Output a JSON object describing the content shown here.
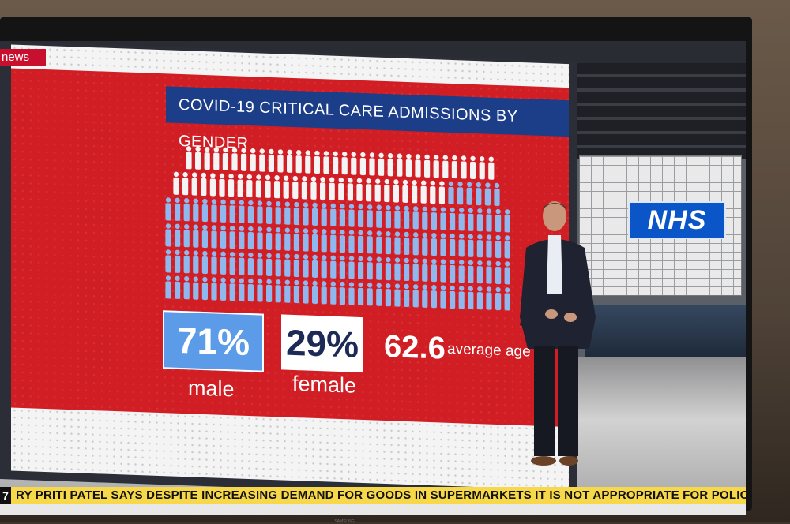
{
  "broadcast": {
    "channel_logo_text": "news",
    "ticker_number": "7",
    "ticker_text": "RY PRITI PATEL SAYS  DESPITE INCREASING DEMAND FOR GOODS IN SUPERMARKETS  IT IS NOT APPROPRIATE FOR POLICE OF"
  },
  "graphic": {
    "title": "COVID-19 CRITICAL CARE ADMISSIONS BY GENDER",
    "male_percent": "71%",
    "male_label": "male",
    "female_percent": "29%",
    "female_label": "female",
    "average_age_value": "62.6",
    "average_age_label": "average age",
    "male_share": 0.71,
    "female_share": 0.29
  },
  "studio": {
    "nhs_logo_text": "NHS"
  },
  "colors": {
    "panel_red": "#d01e24",
    "title_navy": "#1c3d88",
    "male_blue": "#5b9be8",
    "nhs_blue": "#0a55c8",
    "ticker_yellow": "#f6d84a"
  },
  "tv": {
    "brand_text": "SAMSUNG"
  }
}
